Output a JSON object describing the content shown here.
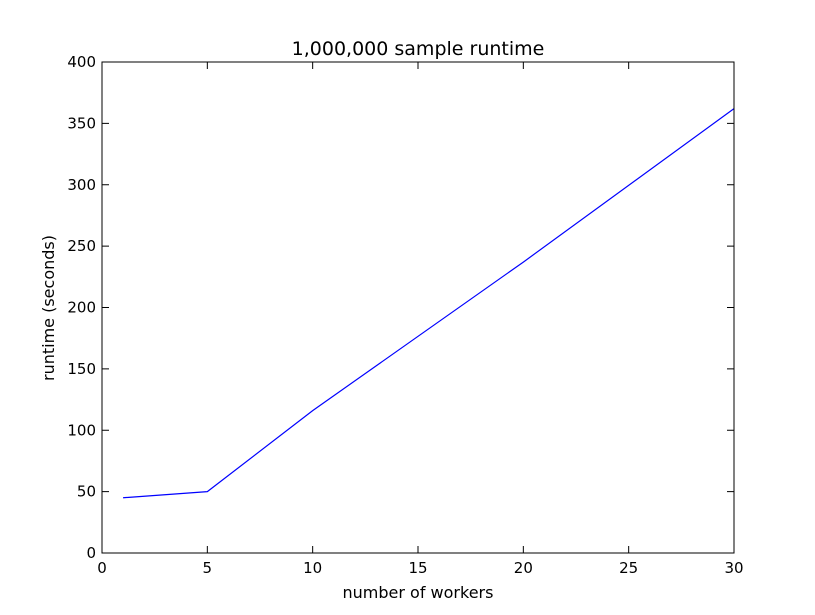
{
  "chart_data": {
    "type": "line",
    "title": "1,000,000 sample runtime",
    "xlabel": "number of workers",
    "ylabel": "runtime (seconds)",
    "xlim": [
      0,
      30
    ],
    "ylim": [
      0,
      400
    ],
    "xticks": [
      0,
      5,
      10,
      15,
      20,
      25,
      30
    ],
    "yticks": [
      0,
      50,
      100,
      150,
      200,
      250,
      300,
      350,
      400
    ],
    "grid": false,
    "series": [
      {
        "color": "#0000ff",
        "x": [
          1,
          5,
          10,
          20,
          30
        ],
        "y": [
          45,
          50,
          116,
          237,
          362
        ]
      }
    ]
  }
}
